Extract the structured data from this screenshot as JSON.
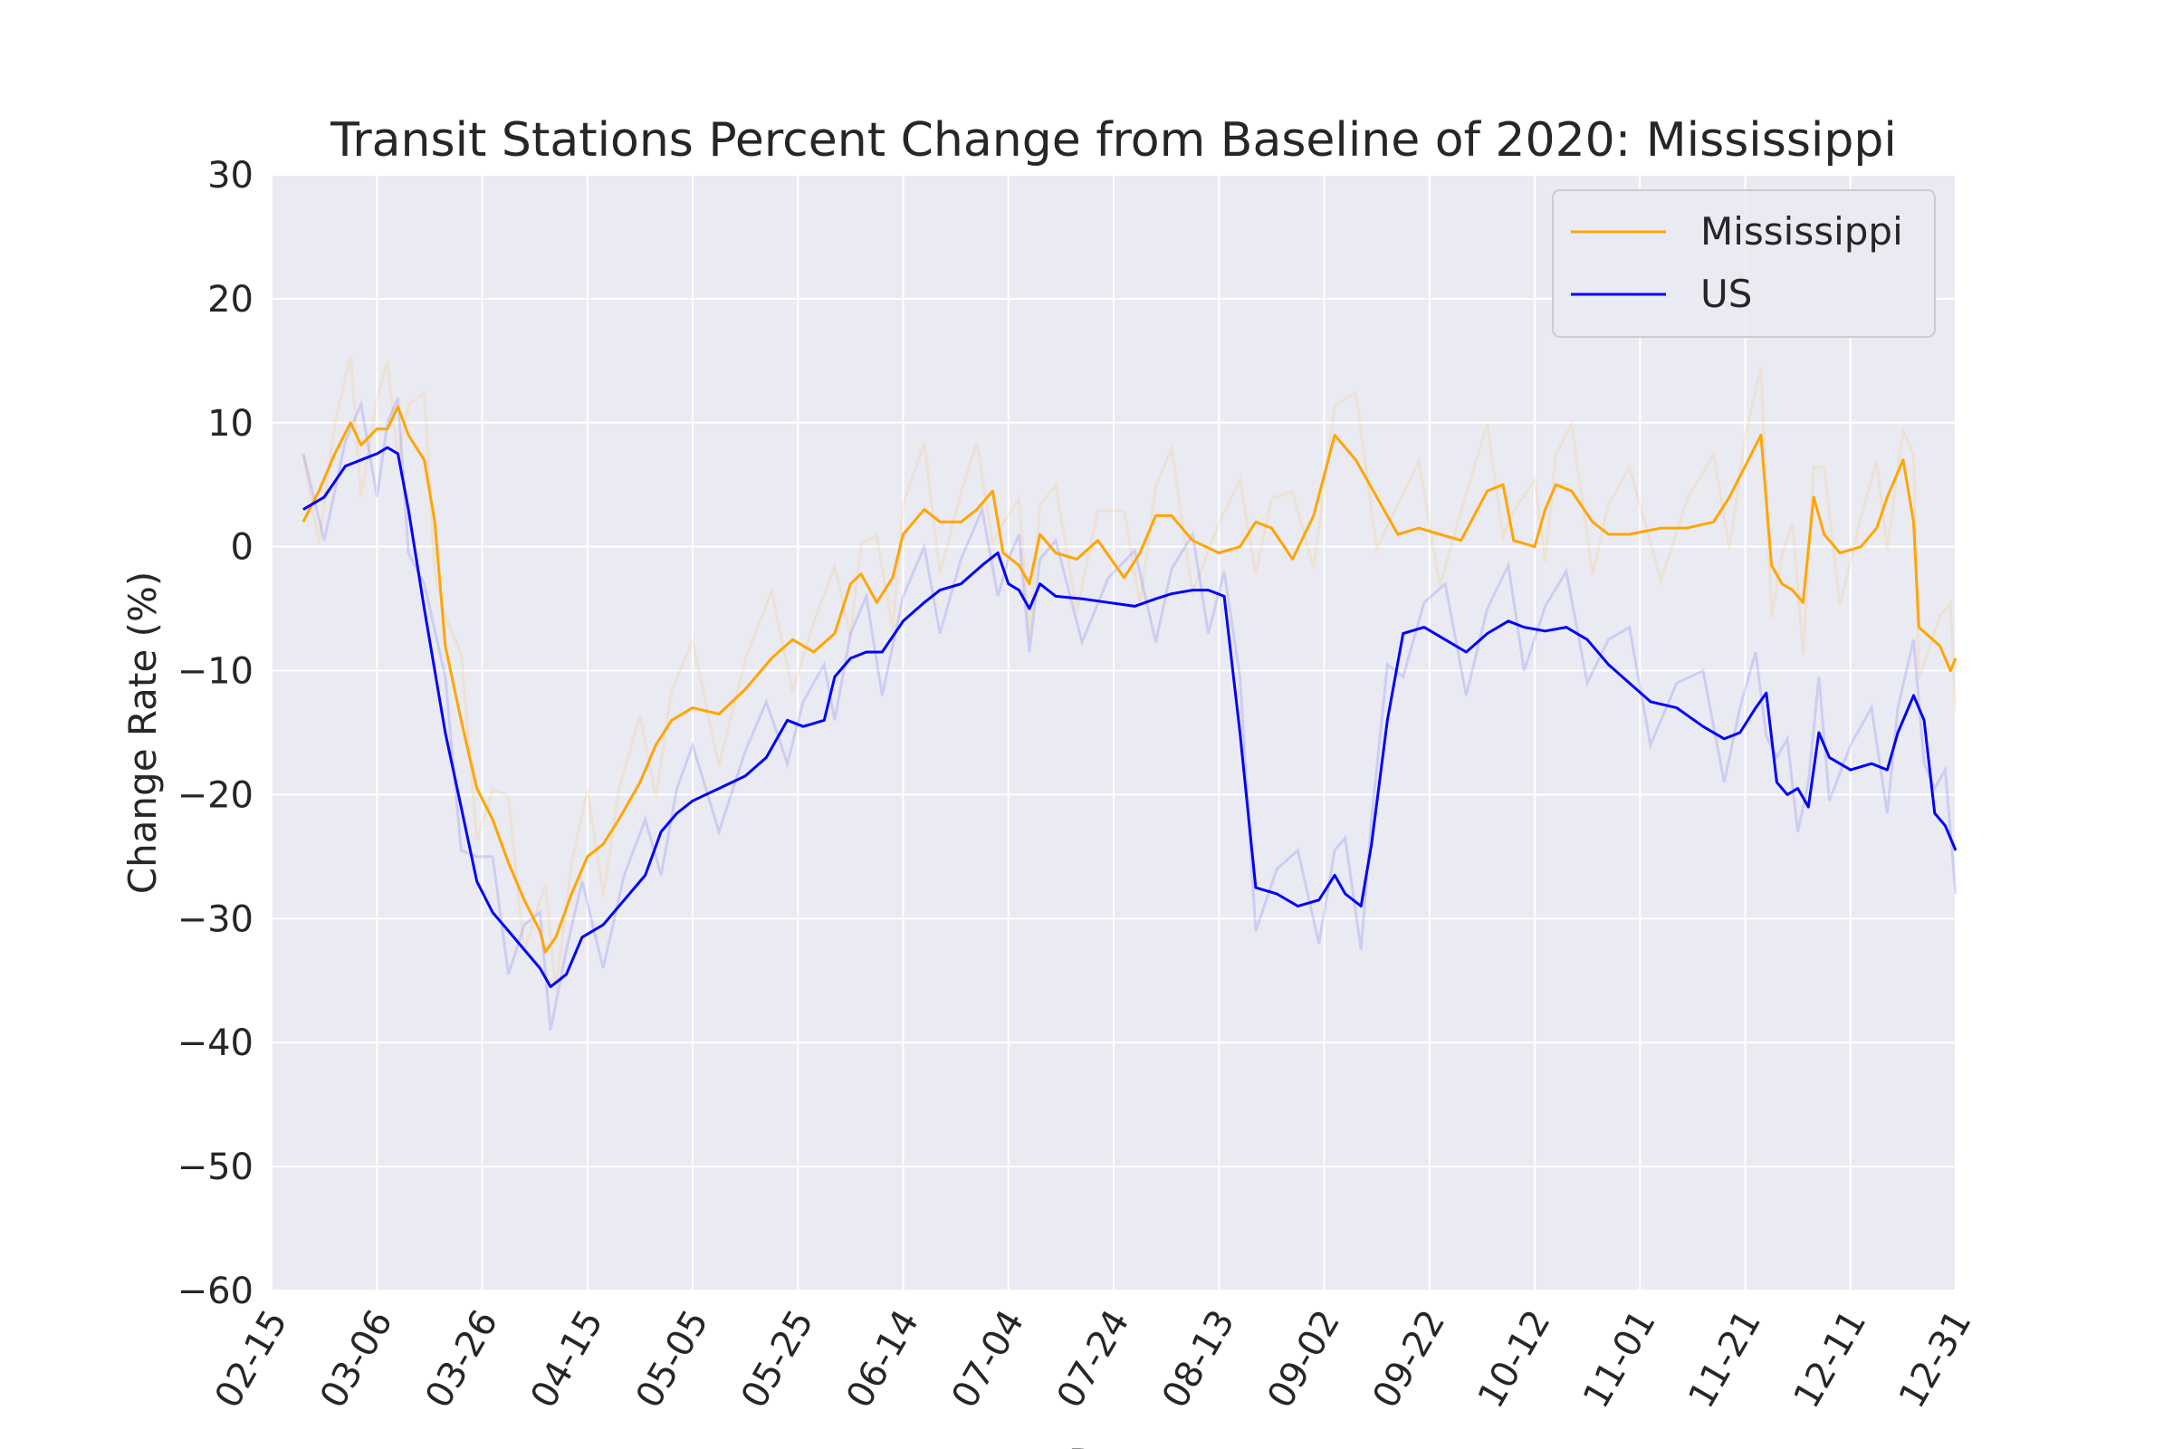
{
  "chart_data": {
    "type": "line",
    "title": "Transit Stations Percent Change from Baseline of 2020: Mississippi",
    "xlabel": "Date",
    "ylabel": "Change Rate (%)",
    "ylim": [
      -60,
      30
    ],
    "y_ticks": [
      "30",
      "20",
      "10",
      "0",
      "−10",
      "−20",
      "−30",
      "−40",
      "−50",
      "−60"
    ],
    "x_ticks": [
      "02-15",
      "03-06",
      "03-26",
      "04-15",
      "05-05",
      "05-25",
      "06-14",
      "07-04",
      "07-24",
      "08-13",
      "09-02",
      "09-22",
      "10-12",
      "11-01",
      "11-21",
      "12-11",
      "12-31"
    ],
    "grid": true,
    "legend_position": "top-right",
    "colors": {
      "Mississippi": "#ffa500",
      "US": "#0000ff",
      "plot_bg": "#eaeaf2",
      "grid": "#ffffff"
    },
    "x_start": "2020-02-15",
    "x_end": "2020-12-31",
    "series": [
      {
        "name": "Mississippi",
        "color": "#ffa500",
        "values_by_date": [
          [
            "2020-02-21",
            2.0
          ],
          [
            "2020-02-24",
            4.5
          ],
          [
            "2020-02-27",
            7.5
          ],
          [
            "2020-03-01",
            10.0
          ],
          [
            "2020-03-03",
            8.2
          ],
          [
            "2020-03-06",
            9.5
          ],
          [
            "2020-03-08",
            9.5
          ],
          [
            "2020-03-10",
            11.3
          ],
          [
            "2020-03-12",
            9.0
          ],
          [
            "2020-03-15",
            7.0
          ],
          [
            "2020-03-17",
            2.0
          ],
          [
            "2020-03-19",
            -8.0
          ],
          [
            "2020-03-22",
            -14.0
          ],
          [
            "2020-03-25",
            -19.5
          ],
          [
            "2020-03-28",
            -22.0
          ],
          [
            "2020-03-31",
            -25.5
          ],
          [
            "2020-04-03",
            -28.5
          ],
          [
            "2020-04-06",
            -31.0
          ],
          [
            "2020-04-07",
            -32.7
          ],
          [
            "2020-04-09",
            -31.5
          ],
          [
            "2020-04-12",
            -28.0
          ],
          [
            "2020-04-15",
            -25.0
          ],
          [
            "2020-04-18",
            -24.0
          ],
          [
            "2020-04-21",
            -22.0
          ],
          [
            "2020-04-25",
            -19.0
          ],
          [
            "2020-04-28",
            -16.0
          ],
          [
            "2020-05-01",
            -14.0
          ],
          [
            "2020-05-05",
            -13.0
          ],
          [
            "2020-05-10",
            -13.5
          ],
          [
            "2020-05-15",
            -11.5
          ],
          [
            "2020-05-20",
            -9.0
          ],
          [
            "2020-05-24",
            -7.5
          ],
          [
            "2020-05-28",
            -8.5
          ],
          [
            "2020-06-01",
            -7.0
          ],
          [
            "2020-06-04",
            -3.0
          ],
          [
            "2020-06-06",
            -2.2
          ],
          [
            "2020-06-09",
            -4.5
          ],
          [
            "2020-06-12",
            -2.5
          ],
          [
            "2020-06-14",
            1.0
          ],
          [
            "2020-06-18",
            3.0
          ],
          [
            "2020-06-21",
            2.0
          ],
          [
            "2020-06-25",
            2.0
          ],
          [
            "2020-06-28",
            3.0
          ],
          [
            "2020-07-01",
            4.5
          ],
          [
            "2020-07-03",
            -0.5
          ],
          [
            "2020-07-06",
            -1.5
          ],
          [
            "2020-07-08",
            -3.0
          ],
          [
            "2020-07-10",
            1.0
          ],
          [
            "2020-07-13",
            -0.5
          ],
          [
            "2020-07-17",
            -1.0
          ],
          [
            "2020-07-21",
            0.5
          ],
          [
            "2020-07-26",
            -2.5
          ],
          [
            "2020-07-29",
            -0.5
          ],
          [
            "2020-08-01",
            2.5
          ],
          [
            "2020-08-04",
            2.5
          ],
          [
            "2020-08-08",
            0.5
          ],
          [
            "2020-08-13",
            -0.5
          ],
          [
            "2020-08-17",
            0.0
          ],
          [
            "2020-08-20",
            2.0
          ],
          [
            "2020-08-23",
            1.5
          ],
          [
            "2020-08-27",
            -1.0
          ],
          [
            "2020-08-31",
            2.5
          ],
          [
            "2020-09-04",
            9.0
          ],
          [
            "2020-09-08",
            7.0
          ],
          [
            "2020-09-12",
            4.0
          ],
          [
            "2020-09-16",
            1.0
          ],
          [
            "2020-09-20",
            1.5
          ],
          [
            "2020-09-24",
            1.0
          ],
          [
            "2020-09-28",
            0.5
          ],
          [
            "2020-10-03",
            4.5
          ],
          [
            "2020-10-06",
            5.0
          ],
          [
            "2020-10-08",
            0.5
          ],
          [
            "2020-10-12",
            0.0
          ],
          [
            "2020-10-14",
            3.0
          ],
          [
            "2020-10-16",
            5.0
          ],
          [
            "2020-10-19",
            4.5
          ],
          [
            "2020-10-23",
            2.0
          ],
          [
            "2020-10-26",
            1.0
          ],
          [
            "2020-10-30",
            1.0
          ],
          [
            "2020-11-05",
            1.5
          ],
          [
            "2020-11-10",
            1.5
          ],
          [
            "2020-11-15",
            2.0
          ],
          [
            "2020-11-18",
            4.0
          ],
          [
            "2020-11-21",
            6.5
          ],
          [
            "2020-11-24",
            9.0
          ],
          [
            "2020-11-26",
            -1.5
          ],
          [
            "2020-11-28",
            -3.0
          ],
          [
            "2020-11-30",
            -3.5
          ],
          [
            "2020-12-02",
            -4.5
          ],
          [
            "2020-12-04",
            4.0
          ],
          [
            "2020-12-06",
            1.0
          ],
          [
            "2020-12-09",
            -0.5
          ],
          [
            "2020-12-13",
            0.0
          ],
          [
            "2020-12-16",
            1.5
          ],
          [
            "2020-12-18",
            4.0
          ],
          [
            "2020-12-21",
            7.0
          ],
          [
            "2020-12-23",
            2.0
          ],
          [
            "2020-12-24",
            -6.5
          ],
          [
            "2020-12-28",
            -8.0
          ],
          [
            "2020-12-30",
            -10.0
          ],
          [
            "2020-12-31",
            -9.0
          ]
        ]
      },
      {
        "name": "US",
        "color": "#0000ff",
        "values_by_date": [
          [
            "2020-02-21",
            3.0
          ],
          [
            "2020-02-25",
            4.0
          ],
          [
            "2020-02-29",
            6.5
          ],
          [
            "2020-03-03",
            7.0
          ],
          [
            "2020-03-06",
            7.5
          ],
          [
            "2020-03-08",
            8.0
          ],
          [
            "2020-03-10",
            7.5
          ],
          [
            "2020-03-12",
            3.0
          ],
          [
            "2020-03-15",
            -5.0
          ],
          [
            "2020-03-19",
            -15.0
          ],
          [
            "2020-03-22",
            -21.0
          ],
          [
            "2020-03-25",
            -27.0
          ],
          [
            "2020-03-28",
            -29.5
          ],
          [
            "2020-03-31",
            -31.0
          ],
          [
            "2020-04-03",
            -32.5
          ],
          [
            "2020-04-06",
            -34.0
          ],
          [
            "2020-04-08",
            -35.5
          ],
          [
            "2020-04-11",
            -34.5
          ],
          [
            "2020-04-14",
            -31.5
          ],
          [
            "2020-04-18",
            -30.5
          ],
          [
            "2020-04-22",
            -28.5
          ],
          [
            "2020-04-26",
            -26.5
          ],
          [
            "2020-04-29",
            -23.0
          ],
          [
            "2020-05-02",
            -21.5
          ],
          [
            "2020-05-05",
            -20.5
          ],
          [
            "2020-05-10",
            -19.5
          ],
          [
            "2020-05-15",
            -18.5
          ],
          [
            "2020-05-19",
            -17.0
          ],
          [
            "2020-05-23",
            -14.0
          ],
          [
            "2020-05-26",
            -14.5
          ],
          [
            "2020-05-30",
            -14.0
          ],
          [
            "2020-06-01",
            -10.5
          ],
          [
            "2020-06-04",
            -9.0
          ],
          [
            "2020-06-07",
            -8.5
          ],
          [
            "2020-06-10",
            -8.5
          ],
          [
            "2020-06-14",
            -6.0
          ],
          [
            "2020-06-18",
            -4.5
          ],
          [
            "2020-06-21",
            -3.5
          ],
          [
            "2020-06-25",
            -3.0
          ],
          [
            "2020-06-29",
            -1.5
          ],
          [
            "2020-07-02",
            -0.5
          ],
          [
            "2020-07-04",
            -3.0
          ],
          [
            "2020-07-06",
            -3.5
          ],
          [
            "2020-07-08",
            -5.0
          ],
          [
            "2020-07-10",
            -3.0
          ],
          [
            "2020-07-13",
            -4.0
          ],
          [
            "2020-07-18",
            -4.2
          ],
          [
            "2020-07-23",
            -4.5
          ],
          [
            "2020-07-28",
            -4.8
          ],
          [
            "2020-08-01",
            -4.2
          ],
          [
            "2020-08-04",
            -3.8
          ],
          [
            "2020-08-08",
            -3.5
          ],
          [
            "2020-08-11",
            -3.5
          ],
          [
            "2020-08-14",
            -4.0
          ],
          [
            "2020-08-17",
            -15.0
          ],
          [
            "2020-08-20",
            -27.5
          ],
          [
            "2020-08-24",
            -28.0
          ],
          [
            "2020-08-28",
            -29.0
          ],
          [
            "2020-09-01",
            -28.5
          ],
          [
            "2020-09-04",
            -26.5
          ],
          [
            "2020-09-06",
            -28.0
          ],
          [
            "2020-09-09",
            -29.0
          ],
          [
            "2020-09-11",
            -24.0
          ],
          [
            "2020-09-14",
            -14.0
          ],
          [
            "2020-09-17",
            -7.0
          ],
          [
            "2020-09-21",
            -6.5
          ],
          [
            "2020-09-25",
            -7.5
          ],
          [
            "2020-09-29",
            -8.5
          ],
          [
            "2020-10-03",
            -7.0
          ],
          [
            "2020-10-07",
            -6.0
          ],
          [
            "2020-10-10",
            -6.5
          ],
          [
            "2020-10-14",
            -6.8
          ],
          [
            "2020-10-18",
            -6.5
          ],
          [
            "2020-10-22",
            -7.5
          ],
          [
            "2020-10-26",
            -9.5
          ],
          [
            "2020-10-30",
            -11.0
          ],
          [
            "2020-11-03",
            -12.5
          ],
          [
            "2020-11-08",
            -13.0
          ],
          [
            "2020-11-13",
            -14.5
          ],
          [
            "2020-11-17",
            -15.5
          ],
          [
            "2020-11-20",
            -15.0
          ],
          [
            "2020-11-23",
            -13.0
          ],
          [
            "2020-11-25",
            -11.8
          ],
          [
            "2020-11-27",
            -19.0
          ],
          [
            "2020-11-29",
            -20.0
          ],
          [
            "2020-12-01",
            -19.5
          ],
          [
            "2020-12-03",
            -21.0
          ],
          [
            "2020-12-05",
            -15.0
          ],
          [
            "2020-12-07",
            -17.0
          ],
          [
            "2020-12-11",
            -18.0
          ],
          [
            "2020-12-15",
            -17.5
          ],
          [
            "2020-12-18",
            -18.0
          ],
          [
            "2020-12-20",
            -15.0
          ],
          [
            "2020-12-23",
            -12.0
          ],
          [
            "2020-12-25",
            -14.0
          ],
          [
            "2020-12-27",
            -21.5
          ],
          [
            "2020-12-29",
            -22.5
          ],
          [
            "2020-12-31",
            -24.5
          ]
        ]
      }
    ]
  }
}
